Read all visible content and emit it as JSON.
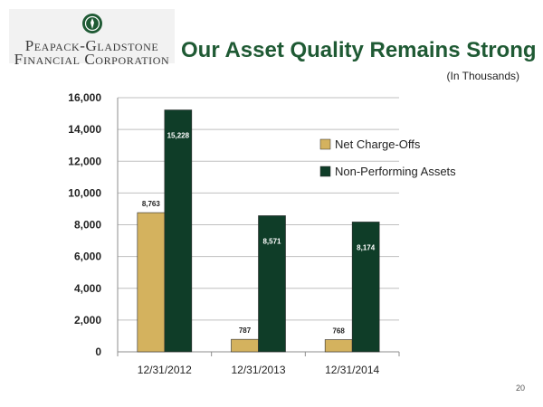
{
  "logo": {
    "line1": "Peapack-Gladstone",
    "line2": "Financial Corporation"
  },
  "title": "Our Asset Quality Remains Strong",
  "subtitle": "(In Thousands)",
  "page_number": "20",
  "colors": {
    "title": "#1f5a34",
    "net_charge_offs": "#d4b25e",
    "non_performing_assets": "#0f3d28",
    "grid": "#bfbfbf",
    "logo_bg": "#f2f2f2"
  },
  "chart_data": {
    "type": "bar",
    "categories": [
      "12/31/2012",
      "12/31/2013",
      "12/31/2014"
    ],
    "series": [
      {
        "name": "Net Charge-Offs",
        "values": [
          8763,
          787,
          768
        ],
        "labels": [
          "8,763",
          "787",
          "768"
        ]
      },
      {
        "name": "Non-Performing Assets",
        "values": [
          15228,
          8571,
          8174
        ],
        "labels": [
          "15,228",
          "8,571",
          "8,174"
        ]
      }
    ],
    "ylim": [
      0,
      16000
    ],
    "yticks": [
      0,
      2000,
      4000,
      6000,
      8000,
      10000,
      12000,
      14000,
      16000
    ],
    "ytick_labels": [
      "0",
      "2,000",
      "4,000",
      "6,000",
      "8,000",
      "10,000",
      "12,000",
      "14,000",
      "16,000"
    ],
    "grid": true,
    "legend": "right"
  }
}
